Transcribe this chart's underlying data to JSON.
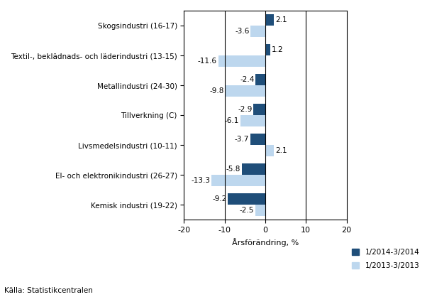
{
  "categories": [
    "Kemisk industri (19-22)",
    "El- och elektronikindustri (26-27)",
    "Livsmedelsindustri (10-11)",
    "Tillverkning (C)",
    "Metallindustri (24-30)",
    "Textil-, beklädnads- och läderindustri (13-15)",
    "Skogsindustri (16-17)"
  ],
  "series_2014": [
    -9.2,
    -5.8,
    -3.7,
    -2.9,
    -2.4,
    1.2,
    2.1
  ],
  "series_2013": [
    -2.5,
    -13.3,
    2.1,
    -6.1,
    -9.8,
    -11.6,
    -3.6
  ],
  "color_2014": "#1F4E79",
  "color_2013": "#BDD7EE",
  "xlabel": "Årsförändring, %",
  "legend_2014": "1/2014-3/2014",
  "legend_2013": "1/2013-3/2013",
  "source": "Källa: Statistikcentralen",
  "xlim": [
    -20,
    20
  ],
  "xticks": [
    -20,
    -10,
    0,
    10,
    20
  ],
  "vlines": [
    -10,
    0,
    10
  ]
}
